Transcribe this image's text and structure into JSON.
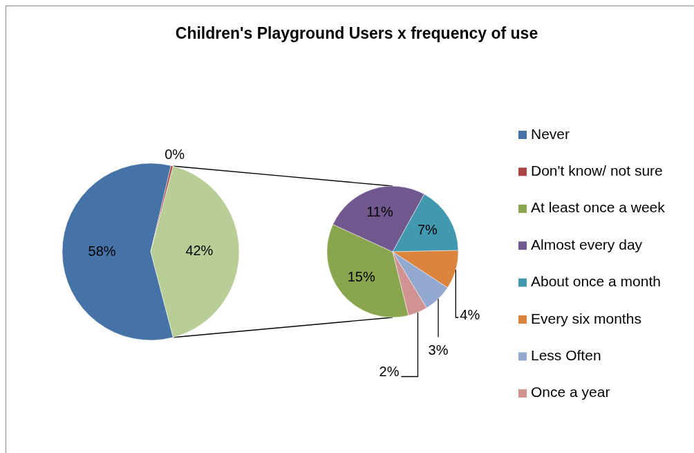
{
  "chart_data": [
    {
      "type": "pie",
      "title": "Children's Playground Users x frequency of use",
      "categories": [
        "Never",
        "Don't know/ not sure",
        null
      ],
      "values": [
        58,
        0.4,
        42
      ],
      "value_labels": [
        "58%",
        "0%",
        "42%"
      ],
      "colors": [
        "#4572a7",
        "#aa4643",
        "#b9cd96"
      ],
      "legend": "right"
    },
    {
      "type": "pie",
      "categories": [
        "At least once a week",
        "Almost every day",
        "About once a month",
        "Every six months",
        "Less Often",
        "Once a year"
      ],
      "values": [
        15,
        11,
        7,
        4,
        3,
        2
      ],
      "value_labels": [
        "15%",
        "11%",
        "7%",
        "4%",
        "3%",
        "2%"
      ],
      "colors": [
        "#89a54e",
        "#71588f",
        "#4198af",
        "#db843d",
        "#93a9cf",
        "#d19392"
      ],
      "legend": "right"
    }
  ]
}
